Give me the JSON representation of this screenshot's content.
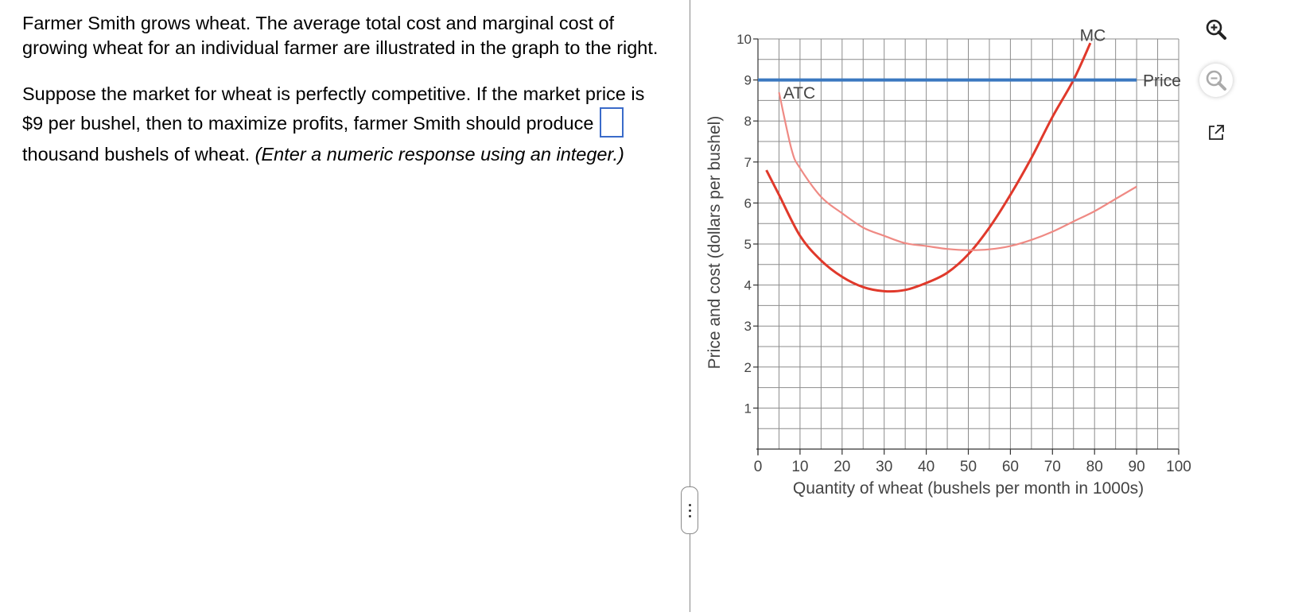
{
  "question": {
    "p1": "Farmer Smith grows wheat.  The average total cost and marginal cost of growing wheat for an individual farmer are illustrated in the graph to the right.",
    "p2_before": "Suppose the market for wheat is perfectly competitive.  If the market price is $9 per bushel, then to maximize profits, farmer Smith should produce",
    "p2_after": "thousand bushels of wheat.",
    "p2_hint": "(Enter a numeric response using an integer.)",
    "answer_value": ""
  },
  "toolbar": {
    "zoom_in": "zoom-in-icon",
    "zoom_out": "zoom-out-icon",
    "popout": "external-link-icon"
  },
  "chart_data": {
    "type": "line",
    "xlabel": "Quantity of wheat (bushels per month in 1000s)",
    "ylabel": "Price and cost (dollars per bushel)",
    "xlim": [
      0,
      100
    ],
    "ylim": [
      0,
      10
    ],
    "x_ticks": [
      "0",
      "10",
      "20",
      "30",
      "40",
      "50",
      "60",
      "70",
      "80",
      "90",
      "100"
    ],
    "y_ticks": [
      "1",
      "2",
      "3",
      "4",
      "5",
      "6",
      "7",
      "8",
      "9",
      "10"
    ],
    "grid": true,
    "series": [
      {
        "name": "MC",
        "color": "#e0392b",
        "points": [
          [
            2,
            6.8
          ],
          [
            5,
            6.2
          ],
          [
            10,
            5.2
          ],
          [
            15,
            4.6
          ],
          [
            20,
            4.2
          ],
          [
            25,
            3.95
          ],
          [
            30,
            3.85
          ],
          [
            35,
            3.88
          ],
          [
            40,
            4.05
          ],
          [
            45,
            4.3
          ],
          [
            50,
            4.75
          ],
          [
            55,
            5.4
          ],
          [
            60,
            6.2
          ],
          [
            65,
            7.1
          ],
          [
            70,
            8.1
          ],
          [
            75,
            9.0
          ],
          [
            79,
            9.9
          ]
        ]
      },
      {
        "name": "ATC",
        "color": "#ef8a84",
        "points": [
          [
            5,
            8.7
          ],
          [
            8,
            7.3
          ],
          [
            10,
            6.85
          ],
          [
            15,
            6.15
          ],
          [
            20,
            5.75
          ],
          [
            25,
            5.4
          ],
          [
            30,
            5.2
          ],
          [
            35,
            5.02
          ],
          [
            40,
            4.95
          ],
          [
            45,
            4.88
          ],
          [
            50,
            4.85
          ],
          [
            55,
            4.87
          ],
          [
            60,
            4.95
          ],
          [
            65,
            5.1
          ],
          [
            70,
            5.3
          ],
          [
            75,
            5.55
          ],
          [
            80,
            5.8
          ],
          [
            85,
            6.1
          ],
          [
            90,
            6.4
          ]
        ]
      },
      {
        "name": "Price",
        "color": "#3a78c0",
        "points": [
          [
            0,
            9
          ],
          [
            90,
            9
          ]
        ]
      }
    ]
  }
}
